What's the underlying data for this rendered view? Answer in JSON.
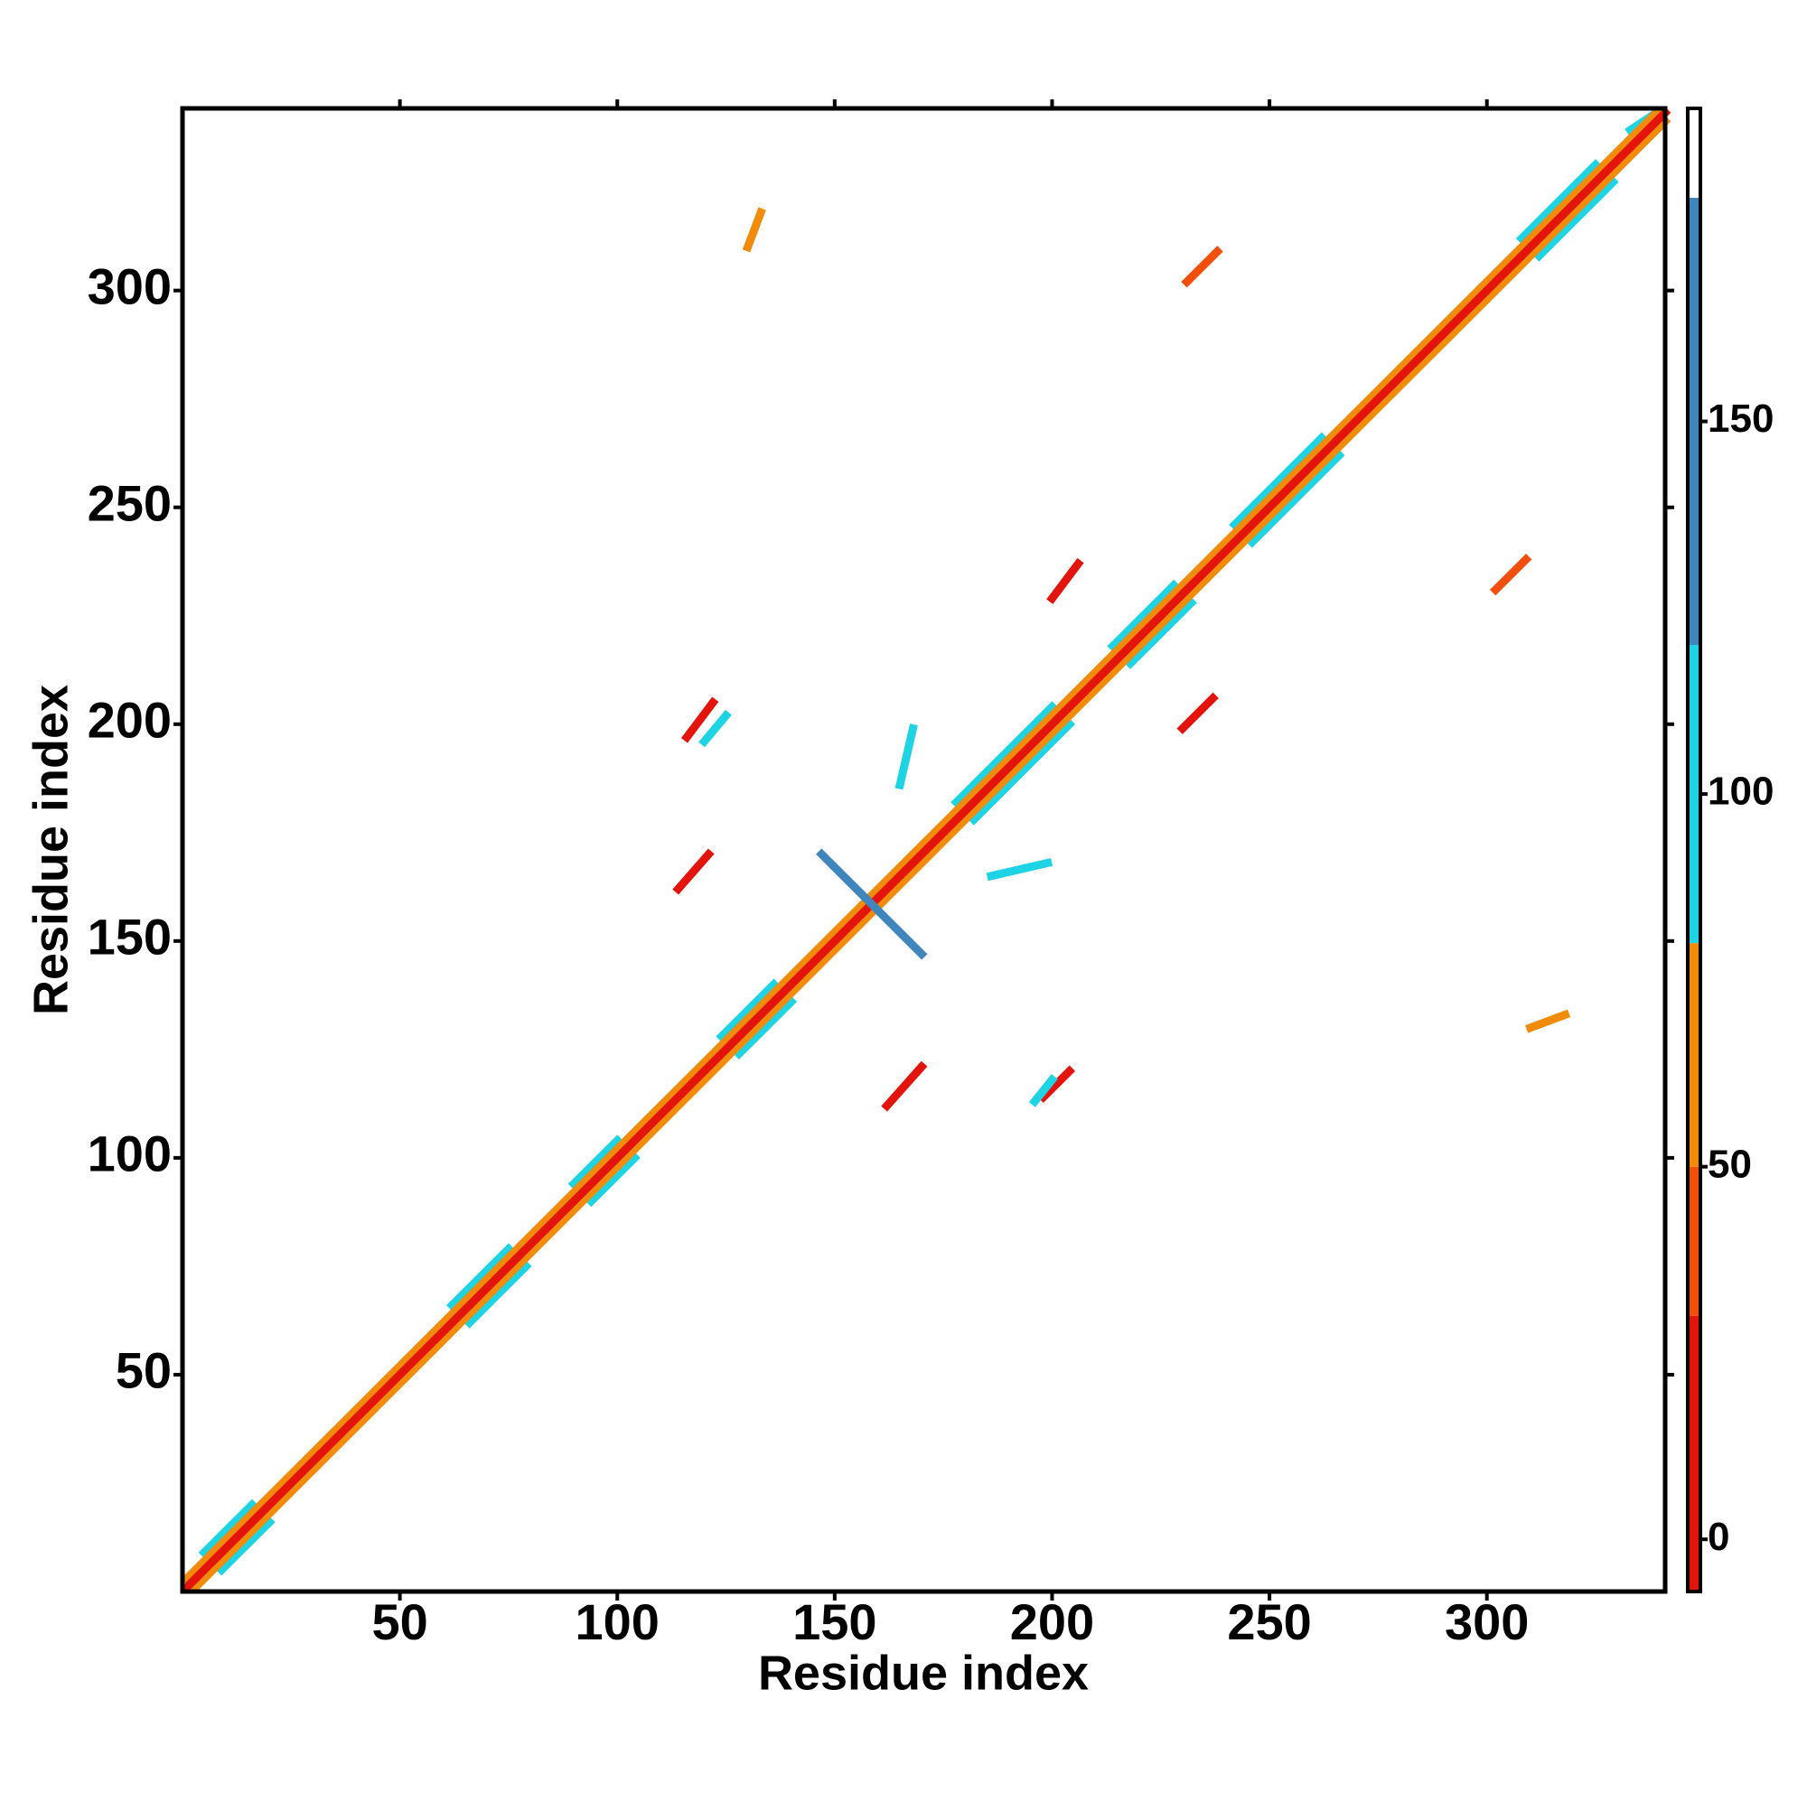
{
  "chart_data": {
    "type": "contact-map",
    "xlabel": "Residue index",
    "ylabel": "Residue index",
    "xlim": [
      0,
      341
    ],
    "ylim": [
      0,
      342
    ],
    "xticks": [
      50,
      100,
      150,
      200,
      250,
      300
    ],
    "yticks": [
      50,
      100,
      150,
      200,
      250,
      300
    ],
    "clim": [
      -7,
      192
    ],
    "cticks": [
      0,
      50,
      100,
      150
    ],
    "color_bins": [
      {
        "from": -7,
        "to": 30,
        "color": "#e3140c"
      },
      {
        "from": 30,
        "to": 50,
        "color": "#f24e0c"
      },
      {
        "from": 50,
        "to": 80,
        "color": "#f08c0a"
      },
      {
        "from": 80,
        "to": 120,
        "color": "#1dd3e4"
      },
      {
        "from": 120,
        "to": 180,
        "color": "#3f86bd"
      },
      {
        "from": 180,
        "to": 192,
        "color": "#ffffff"
      }
    ],
    "segments": [
      {
        "x": [
          5,
          16
        ],
        "y": [
          9,
          20
        ],
        "value": 95
      },
      {
        "x": [
          9,
          20
        ],
        "y": [
          5,
          16
        ],
        "value": 95
      },
      {
        "x": [
          62,
          75
        ],
        "y": [
          66,
          79
        ],
        "value": 95
      },
      {
        "x": [
          66,
          79
        ],
        "y": [
          62,
          75
        ],
        "value": 95
      },
      {
        "x": [
          90,
          100
        ],
        "y": [
          94,
          104
        ],
        "value": 95
      },
      {
        "x": [
          94,
          104
        ],
        "y": [
          90,
          100
        ],
        "value": 95
      },
      {
        "x": [
          124,
          136
        ],
        "y": [
          128,
          140
        ],
        "value": 95
      },
      {
        "x": [
          128,
          140
        ],
        "y": [
          124,
          136
        ],
        "value": 95
      },
      {
        "x": [
          178,
          200
        ],
        "y": [
          182,
          204
        ],
        "value": 95
      },
      {
        "x": [
          182,
          204
        ],
        "y": [
          178,
          200
        ],
        "value": 95
      },
      {
        "x": [
          214,
          228
        ],
        "y": [
          218,
          232
        ],
        "value": 95
      },
      {
        "x": [
          218,
          232
        ],
        "y": [
          214,
          228
        ],
        "value": 95
      },
      {
        "x": [
          242,
          262
        ],
        "y": [
          246,
          266
        ],
        "value": 95
      },
      {
        "x": [
          246,
          266
        ],
        "y": [
          242,
          262
        ],
        "value": 95
      },
      {
        "x": [
          308,
          325
        ],
        "y": [
          312,
          329
        ],
        "value": 95
      },
      {
        "x": [
          312,
          329
        ],
        "y": [
          308,
          325
        ],
        "value": 95
      },
      {
        "x": [
          333,
          339
        ],
        "y": [
          337,
          341
        ],
        "value": 95
      },
      {
        "x": [
          1,
          339
        ],
        "y": [
          3,
          341
        ],
        "value": 60
      },
      {
        "x": [
          3,
          341
        ],
        "y": [
          1,
          339
        ],
        "value": 60
      },
      {
        "x": [
          1,
          341
        ],
        "y": [
          1,
          341
        ],
        "value": 15
      },
      {
        "x": [
          147,
          170
        ],
        "y": [
          170,
          147
        ],
        "value": 170
      },
      {
        "x": [
          114,
          121
        ],
        "y": [
          162,
          170
        ],
        "value": 20
      },
      {
        "x": [
          162,
          170
        ],
        "y": [
          112,
          121
        ],
        "value": 20
      },
      {
        "x": [
          116,
          122
        ],
        "y": [
          197,
          205
        ],
        "value": 20
      },
      {
        "x": [
          198,
          204
        ],
        "y": [
          114,
          120
        ],
        "value": 20
      },
      {
        "x": [
          200,
          206
        ],
        "y": [
          229,
          237
        ],
        "value": 20
      },
      {
        "x": [
          230,
          237
        ],
        "y": [
          199,
          206
        ],
        "value": 20
      },
      {
        "x": [
          231,
          238
        ],
        "y": [
          302,
          309
        ],
        "value": 40
      },
      {
        "x": [
          302,
          309
        ],
        "y": [
          231,
          238
        ],
        "value": 40
      },
      {
        "x": [
          130,
          133
        ],
        "y": [
          310,
          318
        ],
        "value": 60
      },
      {
        "x": [
          310,
          318
        ],
        "y": [
          130,
          133
        ],
        "value": 60
      },
      {
        "x": [
          165,
          168
        ],
        "y": [
          186,
          199
        ],
        "value": 95
      },
      {
        "x": [
          186,
          199
        ],
        "y": [
          165,
          168
        ],
        "value": 95
      },
      {
        "x": [
          120,
          125
        ],
        "y": [
          196,
          202
        ],
        "value": 95
      },
      {
        "x": [
          196,
          200
        ],
        "y": [
          113,
          118
        ],
        "value": 95
      }
    ]
  }
}
